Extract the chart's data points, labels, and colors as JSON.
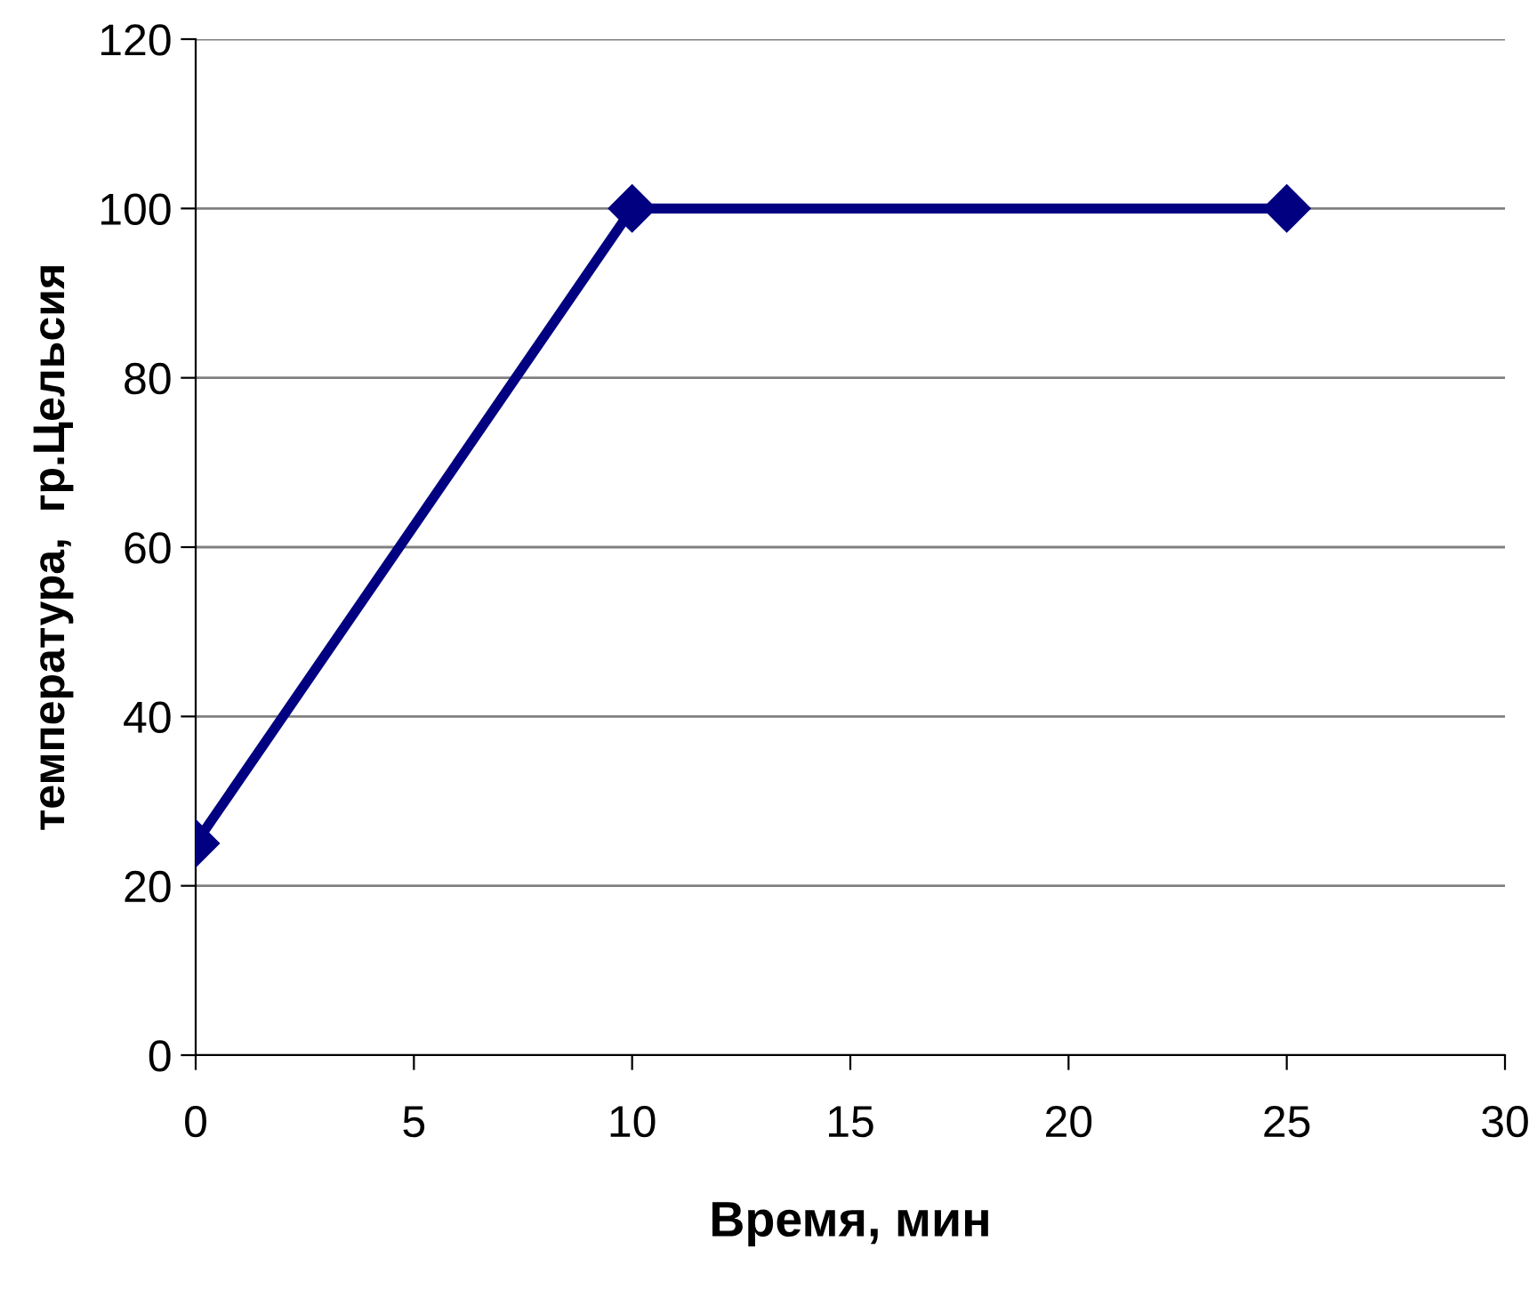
{
  "chart_data": {
    "type": "line",
    "xlabel": "Время, мин",
    "ylabel": "температура,  гр.Цельсия",
    "x": [
      0,
      10,
      25
    ],
    "series": [
      {
        "color": "#000080",
        "values": [
          25,
          100,
          100
        ]
      }
    ],
    "xlim": [
      0,
      30
    ],
    "xticks": [
      0,
      5,
      10,
      15,
      20,
      25,
      30
    ],
    "ylim": [
      0,
      120
    ],
    "yticks": [
      0,
      20,
      40,
      60,
      80,
      100,
      120
    ],
    "grid": "y",
    "marker": "diamond",
    "line_style": "solid",
    "legend": false
  }
}
